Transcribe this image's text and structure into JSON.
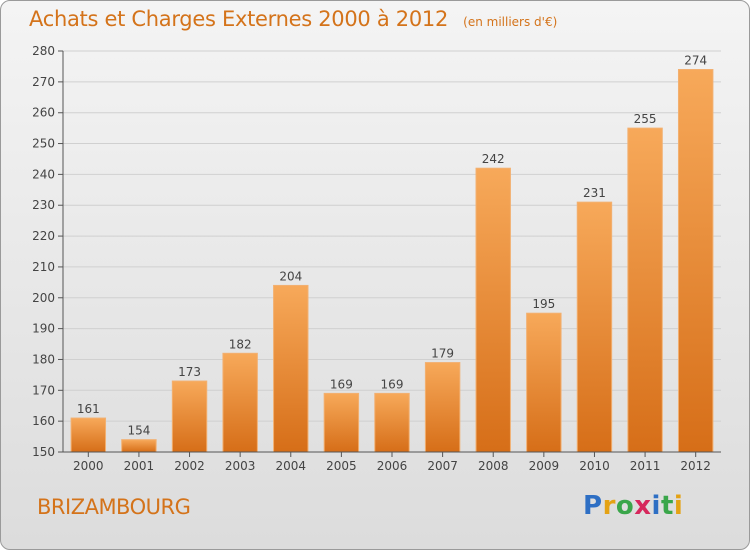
{
  "header": {
    "title": "Achats et Charges Externes 2000 à 2012",
    "unit": "(en milliers d'€)"
  },
  "footer": {
    "commune": "BRIZAMBOURG",
    "logo": {
      "letters": [
        "P",
        "r",
        "o",
        "x",
        "i",
        "t",
        "i"
      ],
      "colors": [
        "#2e6fc4",
        "#e4a214",
        "#3aa64a",
        "#d6285c",
        "#2e6fc4",
        "#3aa64a",
        "#e4a214"
      ]
    }
  },
  "colors": {
    "accent": "#d4731a",
    "bar_light": "#f7a95a",
    "bar_dark": "#d66e18",
    "axis": "#555555",
    "grid": "#d0d0d0"
  },
  "chart_data": {
    "type": "bar",
    "categories": [
      "2000",
      "2001",
      "2002",
      "2003",
      "2004",
      "2005",
      "2006",
      "2007",
      "2008",
      "2009",
      "2010",
      "2011",
      "2012"
    ],
    "values": [
      161,
      154,
      173,
      182,
      204,
      169,
      169,
      179,
      242,
      195,
      231,
      255,
      274
    ],
    "data_labels": [
      "161",
      "154",
      "173",
      "182",
      "204",
      "169",
      "169",
      "179",
      "242",
      "195",
      "231",
      "255",
      "274"
    ],
    "ylim": [
      150,
      280
    ],
    "yticks": [
      150,
      160,
      170,
      180,
      190,
      200,
      210,
      220,
      230,
      240,
      250,
      260,
      270,
      280
    ],
    "ytick_labels": [
      "150",
      "160",
      "170",
      "180",
      "190",
      "200",
      "210",
      "220",
      "230",
      "240",
      "250",
      "260",
      "270",
      "280"
    ],
    "grid": true
  }
}
